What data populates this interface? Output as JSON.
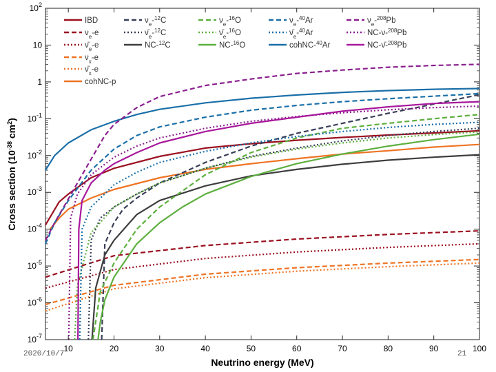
{
  "chart_data": {
    "type": "line",
    "title": "",
    "xlabel": "Neutrino energy (MeV)",
    "ylabel": "Cross section (10^-38 cm^2)",
    "xlim": [
      5,
      100
    ],
    "ylim_log10": [
      -7,
      2
    ],
    "x_ticks": [
      "10",
      "20",
      "30",
      "40",
      "50",
      "60",
      "70",
      "80",
      "90",
      "100"
    ],
    "y_ticks": [
      "10^-7",
      "10^-6",
      "10^-5",
      "10^-4",
      "10^-3",
      "10^-2",
      "10^-1",
      "1",
      "10",
      "10^2"
    ],
    "colors": {
      "darkred": "#9b1020",
      "navy": "#3a3f58",
      "darkgray": "#3d3d3d",
      "green": "#5daf3e",
      "blue": "#1a6fa8",
      "orange": "#ee7323",
      "purple": "#8a1f8e",
      "magenta": "#a8189c"
    },
    "series": [
      {
        "name": "IBD",
        "label_parts": [
          "IBD"
        ],
        "color": "#9b1020",
        "dash": "solid",
        "x": [
          5,
          8,
          10,
          15,
          20,
          30,
          40,
          50,
          60,
          70,
          80,
          90,
          100
        ],
        "y": [
          0.00013,
          0.00055,
          0.0009,
          0.0025,
          0.0045,
          0.0095,
          0.016,
          0.021,
          0.026,
          0.031,
          0.036,
          0.041,
          0.047
        ]
      },
      {
        "name": "nu_e-e",
        "label_parts": [
          "ν",
          "e",
          "-e"
        ],
        "color": "#9b1020",
        "dash": "dash",
        "x": [
          5,
          20,
          40,
          60,
          80,
          100
        ],
        "y": [
          5e-06,
          1.9e-05,
          3.6e-05,
          5.4e-05,
          7.2e-05,
          9e-05
        ]
      },
      {
        "name": "nubar_e-e",
        "label_parts": [
          "ν̄",
          "e",
          "-e"
        ],
        "color": "#9b1020",
        "dash": "dot",
        "x": [
          5,
          20,
          40,
          60,
          80,
          100
        ],
        "y": [
          2.5e-06,
          8e-06,
          1.6e-05,
          2.4e-05,
          3.2e-05,
          4e-05
        ]
      },
      {
        "name": "nu_x-e",
        "label_parts": [
          "ν",
          "x",
          "-e"
        ],
        "color": "#ee7323",
        "dash": "dash",
        "x": [
          5,
          20,
          40,
          60,
          80,
          100
        ],
        "y": [
          9e-07,
          3e-06,
          6e-06,
          9e-06,
          1.2e-05,
          1.5e-05
        ]
      },
      {
        "name": "nubar_x-e",
        "label_parts": [
          "ν̄",
          "x",
          "-e"
        ],
        "color": "#ee7323",
        "dash": "dot",
        "x": [
          5,
          20,
          40,
          60,
          80,
          100
        ],
        "y": [
          6e-07,
          2.4e-06,
          4.8e-06,
          7.2e-06,
          9.6e-06,
          1.2e-05
        ]
      },
      {
        "name": "cohNC-p",
        "label_parts": [
          "cohNC-",
          "p"
        ],
        "color": "#ee7323",
        "dash": "solid",
        "x": [
          6,
          8,
          10,
          15,
          20,
          30,
          40,
          50,
          60,
          70,
          80,
          90,
          100
        ],
        "y": [
          0.0001,
          0.0002,
          0.00035,
          0.0007,
          0.0012,
          0.0025,
          0.0042,
          0.006,
          0.0082,
          0.011,
          0.0135,
          0.017,
          0.02
        ]
      },
      {
        "name": "nu_e-12C",
        "label_parts": [
          "ν",
          "e",
          "-",
          "12",
          "C"
        ],
        "color": "#3a3f58",
        "dash": "dash",
        "x": [
          17.3,
          18,
          20,
          22,
          25,
          30,
          40,
          50,
          60,
          70,
          80,
          90,
          100
        ],
        "y": [
          1e-07,
          4e-05,
          0.00015,
          0.00035,
          0.0007,
          0.0018,
          0.0065,
          0.018,
          0.04,
          0.075,
          0.14,
          0.25,
          0.45
        ]
      },
      {
        "name": "nubar_e-12C",
        "label_parts": [
          "ν̄",
          "e",
          "-",
          "12",
          "C"
        ],
        "color": "#3a3f58",
        "dash": "dot",
        "x": [
          14.4,
          15,
          17,
          20,
          25,
          30,
          40,
          50,
          60,
          70,
          80,
          90,
          100
        ],
        "y": [
          1e-07,
          5e-05,
          0.0002,
          0.0004,
          0.0009,
          0.0018,
          0.0045,
          0.0095,
          0.016,
          0.025,
          0.035,
          0.045,
          0.055
        ]
      },
      {
        "name": "NC-12C",
        "label_parts": [
          "NC-",
          "12",
          "C"
        ],
        "color": "#3d3d3d",
        "dash": "solid",
        "x": [
          15.2,
          16,
          18,
          20,
          25,
          30,
          40,
          50,
          60,
          70,
          80,
          90,
          100
        ],
        "y": [
          1e-07,
          2.5e-06,
          2e-05,
          5e-05,
          0.00025,
          0.0006,
          0.0015,
          0.0028,
          0.0042,
          0.0058,
          0.0075,
          0.009,
          0.0105
        ]
      },
      {
        "name": "nu_e-16O",
        "label_parts": [
          "ν",
          "e",
          "-",
          "16",
          "O"
        ],
        "color": "#5daf3e",
        "dash": "dash",
        "x": [
          15.4,
          17,
          20,
          25,
          30,
          40,
          50,
          60,
          70,
          80,
          90,
          100
        ],
        "y": [
          1e-07,
          2e-06,
          1.2e-05,
          0.0001,
          0.0004,
          0.003,
          0.012,
          0.03,
          0.055,
          0.075,
          0.1,
          0.13
        ]
      },
      {
        "name": "nubar_e-16O",
        "label_parts": [
          "ν̄",
          "e",
          "-",
          "16",
          "O"
        ],
        "color": "#5daf3e",
        "dash": "dot",
        "x": [
          11.4,
          12,
          15,
          20,
          25,
          30,
          40,
          50,
          60,
          70,
          80,
          90,
          100
        ],
        "y": [
          1e-07,
          3e-06,
          8e-05,
          0.0004,
          0.0009,
          0.0018,
          0.0045,
          0.009,
          0.015,
          0.022,
          0.03,
          0.037,
          0.044
        ]
      },
      {
        "name": "NC-16O",
        "label_parts": [
          "NC-",
          "16",
          "O"
        ],
        "color": "#5daf3e",
        "dash": "solid",
        "x": [
          16.5,
          17,
          18,
          20,
          25,
          30,
          35,
          40,
          50,
          60,
          70,
          80,
          90,
          100
        ],
        "y": [
          1e-07,
          3e-07,
          1.2e-06,
          5e-06,
          4e-05,
          0.00015,
          0.0004,
          0.0009,
          0.0027,
          0.006,
          0.011,
          0.018,
          0.027,
          0.038
        ]
      },
      {
        "name": "nu_e-40Ar",
        "label_parts": [
          "ν",
          "e",
          "-",
          "40",
          "Ar"
        ],
        "color": "#1a6fa8",
        "dash": "dash",
        "x": [
          5,
          7,
          10,
          15,
          20,
          25,
          30,
          40,
          50,
          60,
          70,
          80,
          90,
          100
        ],
        "y": [
          4e-05,
          0.00015,
          0.0006,
          0.004,
          0.015,
          0.035,
          0.06,
          0.11,
          0.17,
          0.23,
          0.29,
          0.35,
          0.41,
          0.48
        ]
      },
      {
        "name": "nubar_e-40Ar",
        "label_parts": [
          "ν̄",
          "e",
          "-",
          "40",
          "Ar"
        ],
        "color": "#1a6fa8",
        "dash": "dot",
        "x": [
          12.5,
          13,
          15,
          20,
          25,
          30,
          40,
          50,
          60,
          70,
          80,
          90,
          100
        ],
        "y": [
          1e-07,
          0.0001,
          0.0004,
          0.0016,
          0.0035,
          0.0065,
          0.013,
          0.022,
          0.033,
          0.045,
          0.058,
          0.07,
          0.08
        ]
      },
      {
        "name": "cohNC-40Ar",
        "label_parts": [
          "cohNC-",
          "40",
          "Ar"
        ],
        "color": "#1a6fa8",
        "dash": "solid",
        "x": [
          5,
          7,
          10,
          15,
          20,
          25,
          30,
          40,
          50,
          60,
          70,
          80,
          90,
          100
        ],
        "y": [
          0.004,
          0.01,
          0.022,
          0.05,
          0.085,
          0.13,
          0.18,
          0.27,
          0.36,
          0.44,
          0.52,
          0.58,
          0.63,
          0.66
        ]
      },
      {
        "name": "nu_e-208Pb",
        "label_parts": [
          "ν",
          "e",
          "-",
          "208",
          "Pb"
        ],
        "color": "#8a1f8e",
        "dash": "dash",
        "x": [
          5,
          7,
          9,
          12,
          15,
          18,
          20,
          25,
          30,
          40,
          50,
          60,
          70,
          80,
          90,
          100
        ],
        "y": [
          5e-05,
          0.00015,
          0.0004,
          0.0018,
          0.008,
          0.035,
          0.07,
          0.2,
          0.4,
          0.8,
          1.2,
          1.7,
          2.1,
          2.5,
          2.8,
          3.0
        ]
      },
      {
        "name": "NC-nu-208Pb",
        "label_parts": [
          "NC-ν-",
          "208",
          "Pb"
        ],
        "color": "#8a1f8e",
        "dash": "dot",
        "x": [
          10.1,
          10.5,
          12,
          15,
          20,
          25,
          30,
          40,
          50,
          60,
          70,
          80,
          90,
          100
        ],
        "y": [
          1e-07,
          0.0002,
          0.0009,
          0.003,
          0.009,
          0.018,
          0.03,
          0.055,
          0.085,
          0.115,
          0.145,
          0.175,
          0.2,
          0.22
        ]
      },
      {
        "name": "NC-nubar-208Pb",
        "label_parts": [
          "NC-ν̄-",
          "208",
          "Pb"
        ],
        "color": "#a8189c",
        "dash": "solid",
        "x": [
          12.1,
          12.3,
          13,
          15,
          18,
          20,
          25,
          30,
          40,
          50,
          60,
          70,
          80,
          90,
          100
        ],
        "y": [
          1e-07,
          0.0001,
          0.0006,
          0.0018,
          0.004,
          0.006,
          0.012,
          0.022,
          0.045,
          0.075,
          0.11,
          0.16,
          0.21,
          0.26,
          0.29
        ]
      }
    ],
    "legend_placement": "top-left, 5 columns inside plot area"
  },
  "slide": {
    "date": "2020/10/7",
    "page": "21"
  }
}
